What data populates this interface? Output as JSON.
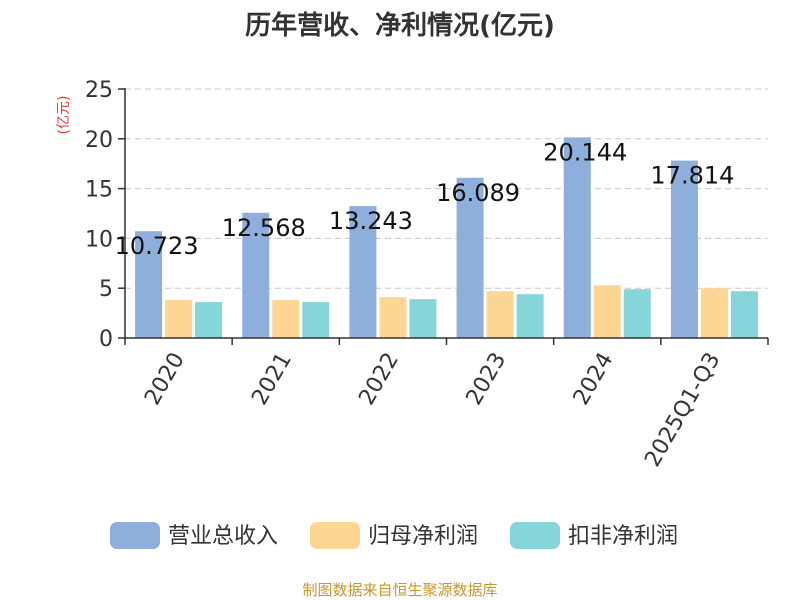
{
  "chart_data": {
    "type": "bar",
    "title": "历年营收、净利情况(亿元)",
    "ylabel": "(亿元)",
    "categories": [
      "2020",
      "2021",
      "2022",
      "2023",
      "2024",
      "2025Q1-Q3"
    ],
    "ylim": [
      0,
      25
    ],
    "yticks": [
      0,
      5,
      10,
      15,
      20,
      25
    ],
    "grid": true,
    "legend_position": "bottom",
    "series": [
      {
        "name": "营业总收入",
        "color": "#8eaedc",
        "values": [
          10.723,
          12.568,
          13.243,
          16.089,
          20.144,
          17.814
        ],
        "labels": [
          "10.723",
          "12.568",
          "13.243",
          "16.089",
          "20.144",
          "17.814"
        ]
      },
      {
        "name": "归母净利润",
        "color": "#fdd694",
        "values": [
          3.8,
          3.8,
          4.1,
          4.7,
          5.3,
          5.0
        ]
      },
      {
        "name": "扣非净利润",
        "color": "#86d5d8",
        "values": [
          3.6,
          3.6,
          3.9,
          4.4,
          4.9,
          4.7
        ]
      }
    ],
    "source": "制图数据来自恒生聚源数据库"
  }
}
